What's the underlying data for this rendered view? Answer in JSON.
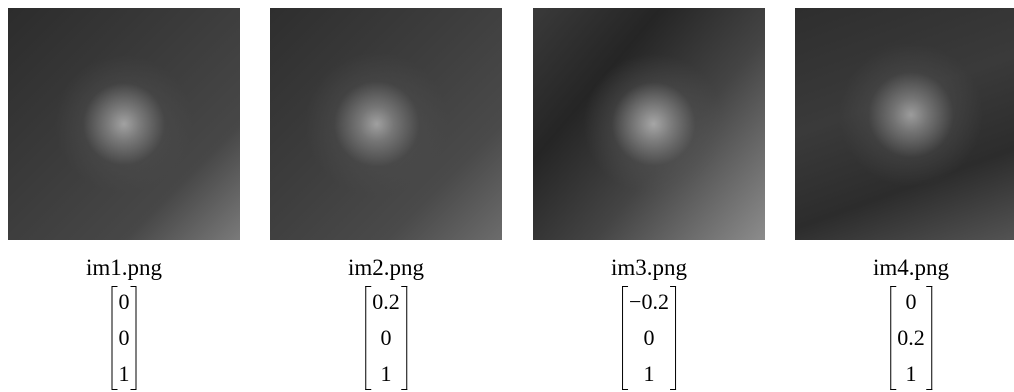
{
  "panels": [
    {
      "caption": "im1.png",
      "vector": [
        "0",
        "0",
        "1"
      ]
    },
    {
      "caption": "im2.png",
      "vector": [
        "0.2",
        "0",
        "1"
      ]
    },
    {
      "caption": "im3.png",
      "vector": [
        "−0.2",
        "0",
        "1"
      ]
    },
    {
      "caption": "im4.png",
      "vector": [
        "0",
        "0.2",
        "1"
      ]
    }
  ]
}
